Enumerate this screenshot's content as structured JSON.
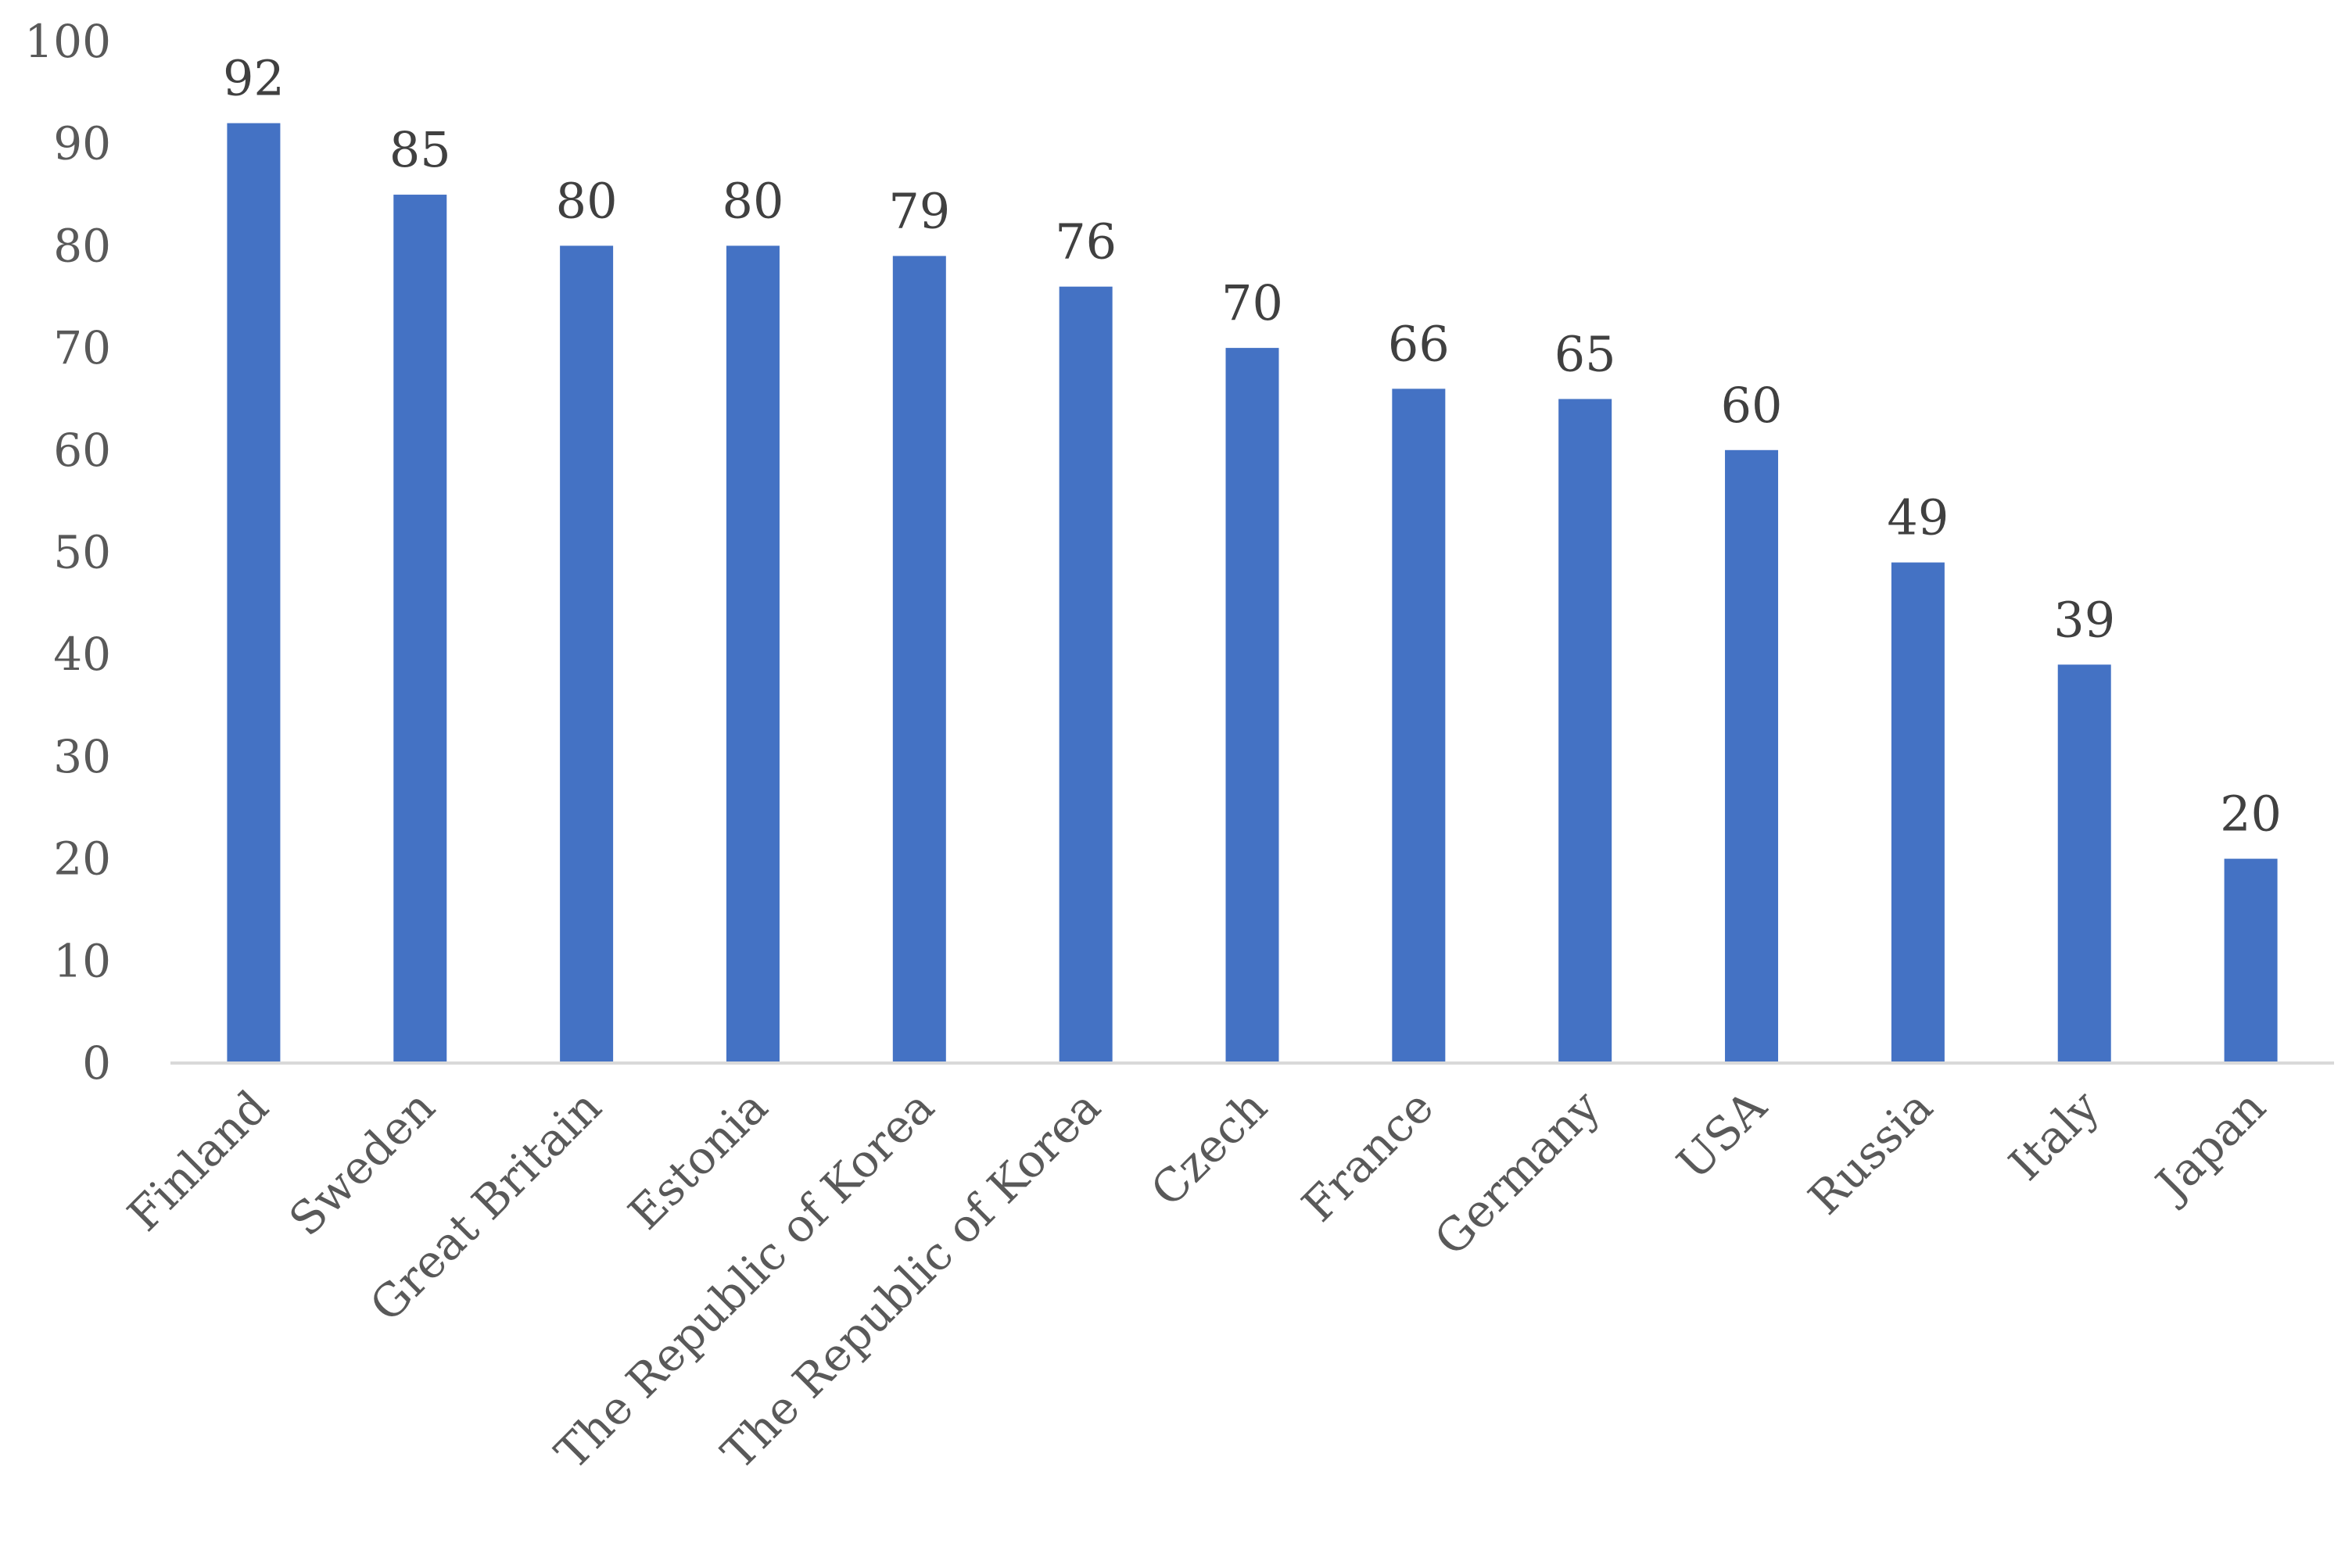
{
  "chart_data": {
    "type": "bar",
    "categories": [
      "Finland",
      "Sweden",
      "Great Britain",
      "Estonia",
      "The Republic of Korea",
      "The Republic of Korea",
      "Czech",
      "France",
      "Germany",
      "USA",
      "Russia",
      "Italy",
      "Japan"
    ],
    "values": [
      92,
      85,
      80,
      80,
      79,
      76,
      70,
      66,
      65,
      60,
      49,
      39,
      20
    ],
    "data_labels": [
      "92",
      "85",
      "80",
      "80",
      "79",
      "76",
      "70",
      "66",
      "65",
      "60",
      "49",
      "39",
      "20"
    ],
    "yticks": [
      "0",
      "10",
      "20",
      "30",
      "40",
      "50",
      "60",
      "70",
      "80",
      "90",
      "100"
    ],
    "ylim": [
      0,
      100
    ],
    "title": "",
    "xlabel": "",
    "ylabel": "",
    "grid": false,
    "legend": "none",
    "colors": {
      "bar": "#4472C4",
      "axis": "#D9D9D9",
      "tick_text": "#595959",
      "data_label_text": "#404040"
    }
  }
}
